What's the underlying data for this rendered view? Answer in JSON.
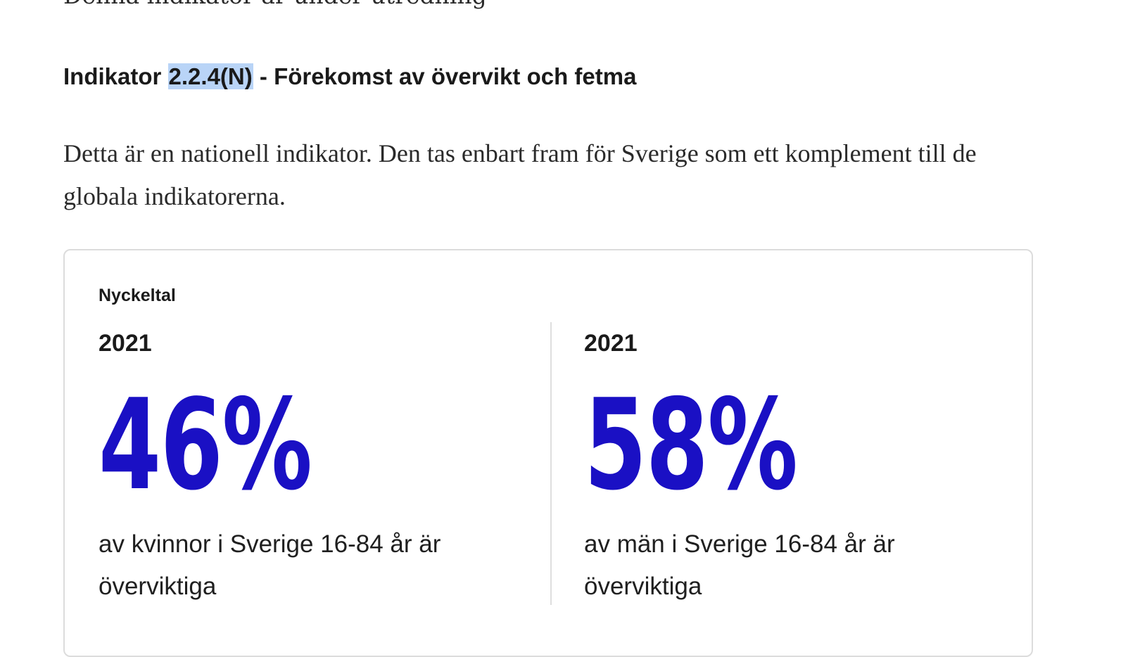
{
  "page": {
    "cut_top_text": "Denna indikator är under utredning",
    "heading": {
      "prefix": "Indikator ",
      "code": "2.2.4(N)",
      "suffix": " - Förekomst av övervikt och fetma"
    },
    "intro": "Detta är en nationell indikator. Den tas enbart fram för Sverige som ett komplement till de globala indikatorerna."
  },
  "card": {
    "label": "Nyckeltal",
    "stats": [
      {
        "year": "2021",
        "value": "46%",
        "caption": "av kvinnor i Sverige 16-84 år är överviktiga"
      },
      {
        "year": "2021",
        "value": "58%",
        "caption": "av män i Sverige 16-84 år är överviktiga"
      }
    ],
    "accent_color": "#1a10c4"
  }
}
